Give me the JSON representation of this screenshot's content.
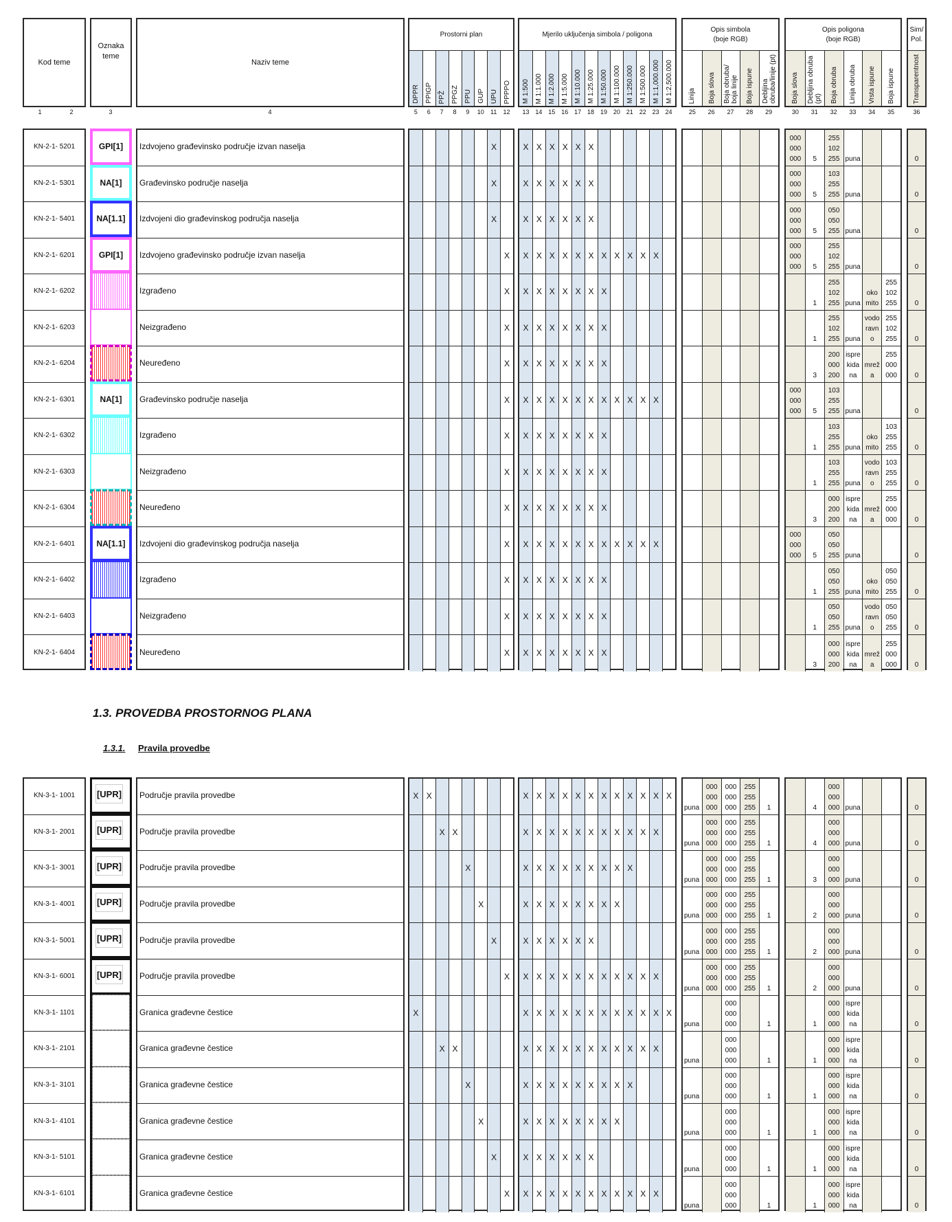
{
  "header": {
    "kod_teme": "Kod teme",
    "oznaka_teme": "Oznaka\nteme",
    "naziv_teme": "Naziv teme",
    "groups": {
      "plan": "Prostorni plan",
      "scale": "Mjerilo uključenja simbola / poligona",
      "symbol": "Opis simbola\n(boje RGB)",
      "polygon": "Opis poligona\n(boje RGB)",
      "simpol": "Sim/\nPol."
    },
    "plan_columns": [
      "DPPR",
      "PPIGP",
      "PPŽ",
      "PPGZ",
      "PPU",
      "GUP",
      "UPU",
      "PPPPO"
    ],
    "scale_columns": [
      "M 1:500",
      "M 1:1.000",
      "M 1:2.000",
      "M 1:5.000",
      "M 1:10.000",
      "M 1:25.000",
      "M 1:50.000",
      "M 1:100.000",
      "M 1:250.000",
      "M 1:500.000",
      "M 1:1,000.000",
      "M 1:2,500.000"
    ],
    "symbol_columns": [
      "Linija",
      "Boja slova",
      "Boja obruba/\nboja linije",
      "Boja ispune",
      "Debljina\nobruba/linije (pt)"
    ],
    "polygon_columns": [
      "Boja slova",
      "Debljina obruba\n(pt)",
      "Boja obruba",
      "Linija obruba",
      "Vrsta ispune",
      "Boja ispune"
    ],
    "simpol_columns": [
      "Transparentnost"
    ],
    "column_numbers": [
      "1",
      "2",
      "3",
      "4",
      "5",
      "6",
      "7",
      "8",
      "9",
      "10",
      "11",
      "12",
      "13",
      "14",
      "15",
      "16",
      "17",
      "18",
      "19",
      "20",
      "21",
      "22",
      "23",
      "24",
      "25",
      "26",
      "27",
      "28",
      "29",
      "30",
      "31",
      "32",
      "33",
      "34",
      "35",
      "36"
    ]
  },
  "colors": {
    "plan_scale_shade": "#dce6f1",
    "rgb_shade": "#eeece1",
    "border": "#2a2a2a"
  },
  "mark": "X",
  "table1": {
    "rows": [
      {
        "code": "KN-2-1- 5201",
        "symbol": {
          "label": "GPI[1]",
          "type": "box",
          "color": "#ff66ff"
        },
        "name": "Izdvojeno građevinsko područje izvan naselja",
        "plan": [
          11
        ],
        "scales": [
          13,
          14,
          15,
          16,
          17,
          18
        ],
        "sym": [
          "",
          "",
          "",
          "",
          ""
        ],
        "poly": [
          "000\n000\n000",
          "5",
          "255\n102\n255",
          "puna",
          "",
          ""
        ],
        "simpol": "0"
      },
      {
        "code": "KN-2-1- 5301",
        "symbol": {
          "label": "NA[1]",
          "type": "box",
          "color": "#66ffff"
        },
        "name": "Građevinsko područje naselja",
        "plan": [
          11
        ],
        "scales": [
          13,
          14,
          15,
          16,
          17,
          18
        ],
        "sym": [
          "",
          "",
          "",
          "",
          ""
        ],
        "poly": [
          "000\n000\n000",
          "5",
          "103\n255\n255",
          "puna",
          "",
          ""
        ],
        "simpol": "0"
      },
      {
        "code": "KN-2-1- 5401",
        "symbol": {
          "label": "NA[1.1]",
          "type": "box",
          "color": "#3333ff"
        },
        "name": "Izdvojeni dio građevinskog područja naselja",
        "plan": [
          11
        ],
        "scales": [
          13,
          14,
          15,
          16,
          17,
          18
        ],
        "sym": [
          "",
          "",
          "",
          "",
          ""
        ],
        "poly": [
          "000\n000\n000",
          "5",
          "050\n050\n255",
          "puna",
          "",
          ""
        ],
        "simpol": "0"
      },
      {
        "code": "KN-2-1- 6201",
        "symbol": {
          "label": "GPI[1]",
          "type": "box",
          "color": "#ff66ff"
        },
        "name": "Izdvojeno građevinsko područje izvan naselja",
        "plan": [
          12
        ],
        "scales": [
          13,
          14,
          15,
          16,
          17,
          18,
          19,
          20,
          21,
          22,
          23
        ],
        "sym": [
          "",
          "",
          "",
          "",
          ""
        ],
        "poly": [
          "000\n000\n000",
          "5",
          "255\n102\n255",
          "puna",
          "",
          ""
        ],
        "simpol": "0"
      },
      {
        "code": "KN-2-1- 6202",
        "symbol": {
          "label": "",
          "type": "hatch",
          "color": "#ff66ff"
        },
        "name": "Izgrađeno",
        "plan": [
          12
        ],
        "scales": [
          13,
          14,
          15,
          16,
          17,
          18,
          19
        ],
        "sym": [
          "",
          "",
          "",
          "",
          ""
        ],
        "poly": [
          "",
          "1",
          "255\n102\n255",
          "puna",
          "oko\nmito",
          "255\n102\n255"
        ],
        "simpol": "0"
      },
      {
        "code": "KN-2-1- 6203",
        "symbol": {
          "label": "",
          "type": "plain",
          "color": "#ff66ff"
        },
        "name": "Neizgrađeno",
        "plan": [
          12
        ],
        "scales": [
          13,
          14,
          15,
          16,
          17,
          18,
          19
        ],
        "sym": [
          "",
          "",
          "",
          "",
          ""
        ],
        "poly": [
          "",
          "1",
          "255\n102\n255",
          "puna",
          "vodo\nravn\no",
          "255\n102\n255"
        ],
        "simpol": "0"
      },
      {
        "code": "KN-2-1- 6204",
        "symbol": {
          "label": "",
          "type": "dashed-hatch",
          "color": "#c800c8",
          "fill": "#ff3333"
        },
        "name": "Neuređeno",
        "plan": [
          12
        ],
        "scales": [
          13,
          14,
          15,
          16,
          17,
          18,
          19
        ],
        "sym": [
          "",
          "",
          "",
          "",
          ""
        ],
        "poly": [
          "",
          "3",
          "200\n000\n200",
          "ispre\nkida\nna",
          "mrež\na",
          "255\n000\n000"
        ],
        "simpol": "0"
      },
      {
        "code": "KN-2-1- 6301",
        "symbol": {
          "label": "NA[1]",
          "type": "box",
          "color": "#66ffff"
        },
        "name": "Građevinsko područje naselja",
        "plan": [
          12
        ],
        "scales": [
          13,
          14,
          15,
          16,
          17,
          18,
          19,
          20,
          21,
          22,
          23
        ],
        "sym": [
          "",
          "",
          "",
          "",
          ""
        ],
        "poly": [
          "000\n000\n000",
          "5",
          "103\n255\n255",
          "puna",
          "",
          ""
        ],
        "simpol": "0"
      },
      {
        "code": "KN-2-1- 6302",
        "symbol": {
          "label": "",
          "type": "hatch",
          "color": "#66ffff"
        },
        "name": "Izgrađeno",
        "plan": [
          12
        ],
        "scales": [
          13,
          14,
          15,
          16,
          17,
          18,
          19
        ],
        "sym": [
          "",
          "",
          "",
          "",
          ""
        ],
        "poly": [
          "",
          "1",
          "103\n255\n255",
          "puna",
          "oko\nmito",
          "103\n255\n255"
        ],
        "simpol": "0"
      },
      {
        "code": "KN-2-1- 6303",
        "symbol": {
          "label": "",
          "type": "plain",
          "color": "#66ffff"
        },
        "name": "Neizgrađeno",
        "plan": [
          12
        ],
        "scales": [
          13,
          14,
          15,
          16,
          17,
          18,
          19
        ],
        "sym": [
          "",
          "",
          "",
          "",
          ""
        ],
        "poly": [
          "",
          "1",
          "103\n255\n255",
          "puna",
          "vodo\nravn\no",
          "103\n255\n255"
        ],
        "simpol": "0"
      },
      {
        "code": "KN-2-1- 6304",
        "symbol": {
          "label": "",
          "type": "dashed-hatch",
          "color": "#00b4b4",
          "fill": "#ff3333"
        },
        "name": "Neuređeno",
        "plan": [
          12
        ],
        "scales": [
          13,
          14,
          15,
          16,
          17,
          18,
          19
        ],
        "sym": [
          "",
          "",
          "",
          "",
          ""
        ],
        "poly": [
          "",
          "3",
          "000\n200\n200",
          "ispre\nkida\nna",
          "mrež\na",
          "255\n000\n000"
        ],
        "simpol": "0"
      },
      {
        "code": "KN-2-1- 6401",
        "symbol": {
          "label": "NA[1.1]",
          "type": "box",
          "color": "#3333ff"
        },
        "name": "Izdvojeni dio građevinskog područja naselja",
        "plan": [
          12
        ],
        "scales": [
          13,
          14,
          15,
          16,
          17,
          18,
          19,
          20,
          21,
          22,
          23
        ],
        "sym": [
          "",
          "",
          "",
          "",
          ""
        ],
        "poly": [
          "000\n000\n000",
          "5",
          "050\n050\n255",
          "puna",
          "",
          ""
        ],
        "simpol": "0"
      },
      {
        "code": "KN-2-1- 6402",
        "symbol": {
          "label": "",
          "type": "hatch",
          "color": "#3333ff"
        },
        "name": "Izgrađeno",
        "plan": [
          12
        ],
        "scales": [
          13,
          14,
          15,
          16,
          17,
          18,
          19
        ],
        "sym": [
          "",
          "",
          "",
          "",
          ""
        ],
        "poly": [
          "",
          "1",
          "050\n050\n255",
          "puna",
          "oko\nmito",
          "050\n050\n255"
        ],
        "simpol": "0"
      },
      {
        "code": "KN-2-1- 6403",
        "symbol": {
          "label": "",
          "type": "plain",
          "color": "#3333ff"
        },
        "name": "Neizgrađeno",
        "plan": [
          12
        ],
        "scales": [
          13,
          14,
          15,
          16,
          17,
          18,
          19
        ],
        "sym": [
          "",
          "",
          "",
          "",
          ""
        ],
        "poly": [
          "",
          "1",
          "050\n050\n255",
          "puna",
          "vodo\nravn\no",
          "050\n050\n255"
        ],
        "simpol": "0"
      },
      {
        "code": "KN-2-1- 6404",
        "symbol": {
          "label": "",
          "type": "dashed-hatch",
          "color": "#0000c8",
          "fill": "#ff3333"
        },
        "name": "Neuređeno",
        "plan": [
          12
        ],
        "scales": [
          13,
          14,
          15,
          16,
          17,
          18,
          19
        ],
        "sym": [
          "",
          "",
          "",
          "",
          ""
        ],
        "poly": [
          "",
          "3",
          "000\n000\n200",
          "ispre\nkida\nna",
          "mrež\na",
          "255\n000\n000"
        ],
        "simpol": "0"
      }
    ]
  },
  "section": {
    "heading": "1.3. PROVEDBA PROSTORNOG PLANA",
    "sub_number": "1.3.1.",
    "sub_title": "Pravila provedbe"
  },
  "table2": {
    "rows": [
      {
        "code": "KN-3-1- 1001",
        "symbol": {
          "label": "[UPR]",
          "type": "upr"
        },
        "name": "Područje pravila provedbe",
        "plan": [
          5,
          6
        ],
        "scales": [
          13,
          14,
          15,
          16,
          17,
          18,
          19,
          20,
          21,
          22,
          23,
          24
        ],
        "sym": [
          "puna",
          "000\n000\n000",
          "000\n000\n000",
          "255\n255\n255",
          "1"
        ],
        "poly": [
          "",
          "4",
          "000\n000\n000",
          "puna",
          "",
          ""
        ],
        "simpol": "0"
      },
      {
        "code": "KN-3-1- 2001",
        "symbol": {
          "label": "[UPR]",
          "type": "upr"
        },
        "name": "Područje pravila provedbe",
        "plan": [
          7,
          8
        ],
        "scales": [
          13,
          14,
          15,
          16,
          17,
          18,
          19,
          20,
          21,
          22,
          23
        ],
        "sym": [
          "puna",
          "000\n000\n000",
          "000\n000\n000",
          "255\n255\n255",
          "1"
        ],
        "poly": [
          "",
          "4",
          "000\n000\n000",
          "puna",
          "",
          ""
        ],
        "simpol": "0"
      },
      {
        "code": "KN-3-1- 3001",
        "symbol": {
          "label": "[UPR]",
          "type": "upr"
        },
        "name": "Područje pravila provedbe",
        "plan": [
          9
        ],
        "scales": [
          13,
          14,
          15,
          16,
          17,
          18,
          19,
          20,
          21
        ],
        "sym": [
          "puna",
          "000\n000\n000",
          "000\n000\n000",
          "255\n255\n255",
          "1"
        ],
        "poly": [
          "",
          "3",
          "000\n000\n000",
          "puna",
          "",
          ""
        ],
        "simpol": "0"
      },
      {
        "code": "KN-3-1- 4001",
        "symbol": {
          "label": "[UPR]",
          "type": "upr"
        },
        "name": "Područje pravila provedbe",
        "plan": [
          10
        ],
        "scales": [
          13,
          14,
          15,
          16,
          17,
          18,
          19,
          20
        ],
        "sym": [
          "puna",
          "000\n000\n000",
          "000\n000\n000",
          "255\n255\n255",
          "1"
        ],
        "poly": [
          "",
          "2",
          "000\n000\n000",
          "puna",
          "",
          ""
        ],
        "simpol": "0"
      },
      {
        "code": "KN-3-1- 5001",
        "symbol": {
          "label": "[UPR]",
          "type": "upr"
        },
        "name": "Područje pravila provedbe",
        "plan": [
          11
        ],
        "scales": [
          13,
          14,
          15,
          16,
          17,
          18
        ],
        "sym": [
          "puna",
          "000\n000\n000",
          "000\n000\n000",
          "255\n255\n255",
          "1"
        ],
        "poly": [
          "",
          "2",
          "000\n000\n000",
          "puna",
          "",
          ""
        ],
        "simpol": "0"
      },
      {
        "code": "KN-3-1- 6001",
        "symbol": {
          "label": "[UPR]",
          "type": "upr"
        },
        "name": "Područje pravila provedbe",
        "plan": [
          12
        ],
        "scales": [
          13,
          14,
          15,
          16,
          17,
          18,
          19,
          20,
          21,
          22,
          23
        ],
        "sym": [
          "puna",
          "000\n000\n000",
          "000\n000\n000",
          "255\n255\n255",
          "1"
        ],
        "poly": [
          "",
          "2",
          "000\n000\n000",
          "puna",
          "",
          ""
        ],
        "simpol": "0"
      },
      {
        "code": "KN-3-1- 1101",
        "symbol": {
          "label": "",
          "type": "dotted"
        },
        "name": "Granica građevne čestice",
        "plan": [
          5
        ],
        "scales": [
          13,
          14,
          15,
          16,
          17,
          18,
          19,
          20,
          21,
          22,
          23,
          24
        ],
        "sym": [
          "puna",
          "",
          "000\n000\n000",
          "",
          "1"
        ],
        "poly": [
          "",
          "1",
          "000\n000\n000",
          "ispre\nkida\nna",
          "",
          ""
        ],
        "simpol": "0"
      },
      {
        "code": "KN-3-1- 2101",
        "symbol": {
          "label": "",
          "type": "dotted"
        },
        "name": "Granica građevne čestice",
        "plan": [
          7,
          8
        ],
        "scales": [
          13,
          14,
          15,
          16,
          17,
          18,
          19,
          20,
          21,
          22,
          23
        ],
        "sym": [
          "puna",
          "",
          "000\n000\n000",
          "",
          "1"
        ],
        "poly": [
          "",
          "1",
          "000\n000\n000",
          "ispre\nkida\nna",
          "",
          ""
        ],
        "simpol": "0"
      },
      {
        "code": "KN-3-1- 3101",
        "symbol": {
          "label": "",
          "type": "dotted"
        },
        "name": "Granica građevne čestice",
        "plan": [
          9
        ],
        "scales": [
          13,
          14,
          15,
          16,
          17,
          18,
          19,
          20,
          21
        ],
        "sym": [
          "puna",
          "",
          "000\n000\n000",
          "",
          "1"
        ],
        "poly": [
          "",
          "1",
          "000\n000\n000",
          "ispre\nkida\nna",
          "",
          ""
        ],
        "simpol": "0"
      },
      {
        "code": "KN-3-1- 4101",
        "symbol": {
          "label": "",
          "type": "dotted"
        },
        "name": "Granica građevne čestice",
        "plan": [
          10
        ],
        "scales": [
          13,
          14,
          15,
          16,
          17,
          18,
          19,
          20
        ],
        "sym": [
          "puna",
          "",
          "000\n000\n000",
          "",
          "1"
        ],
        "poly": [
          "",
          "1",
          "000\n000\n000",
          "ispre\nkida\nna",
          "",
          ""
        ],
        "simpol": "0"
      },
      {
        "code": "KN-3-1- 5101",
        "symbol": {
          "label": "",
          "type": "dotted"
        },
        "name": "Granica građevne čestice",
        "plan": [
          11
        ],
        "scales": [
          13,
          14,
          15,
          16,
          17,
          18
        ],
        "sym": [
          "puna",
          "",
          "000\n000\n000",
          "",
          "1"
        ],
        "poly": [
          "",
          "1",
          "000\n000\n000",
          "ispre\nkida\nna",
          "",
          ""
        ],
        "simpol": "0"
      },
      {
        "code": "KN-3-1- 6101",
        "symbol": {
          "label": "",
          "type": "dotted"
        },
        "name": "Granica građevne čestice",
        "plan": [
          12
        ],
        "scales": [
          13,
          14,
          15,
          16,
          17,
          18,
          19,
          20,
          21,
          22,
          23
        ],
        "sym": [
          "puna",
          "",
          "000\n000\n000",
          "",
          "1"
        ],
        "poly": [
          "",
          "1",
          "000\n000\n000",
          "ispre\nkida\nna",
          "",
          ""
        ],
        "simpol": "0"
      }
    ]
  }
}
